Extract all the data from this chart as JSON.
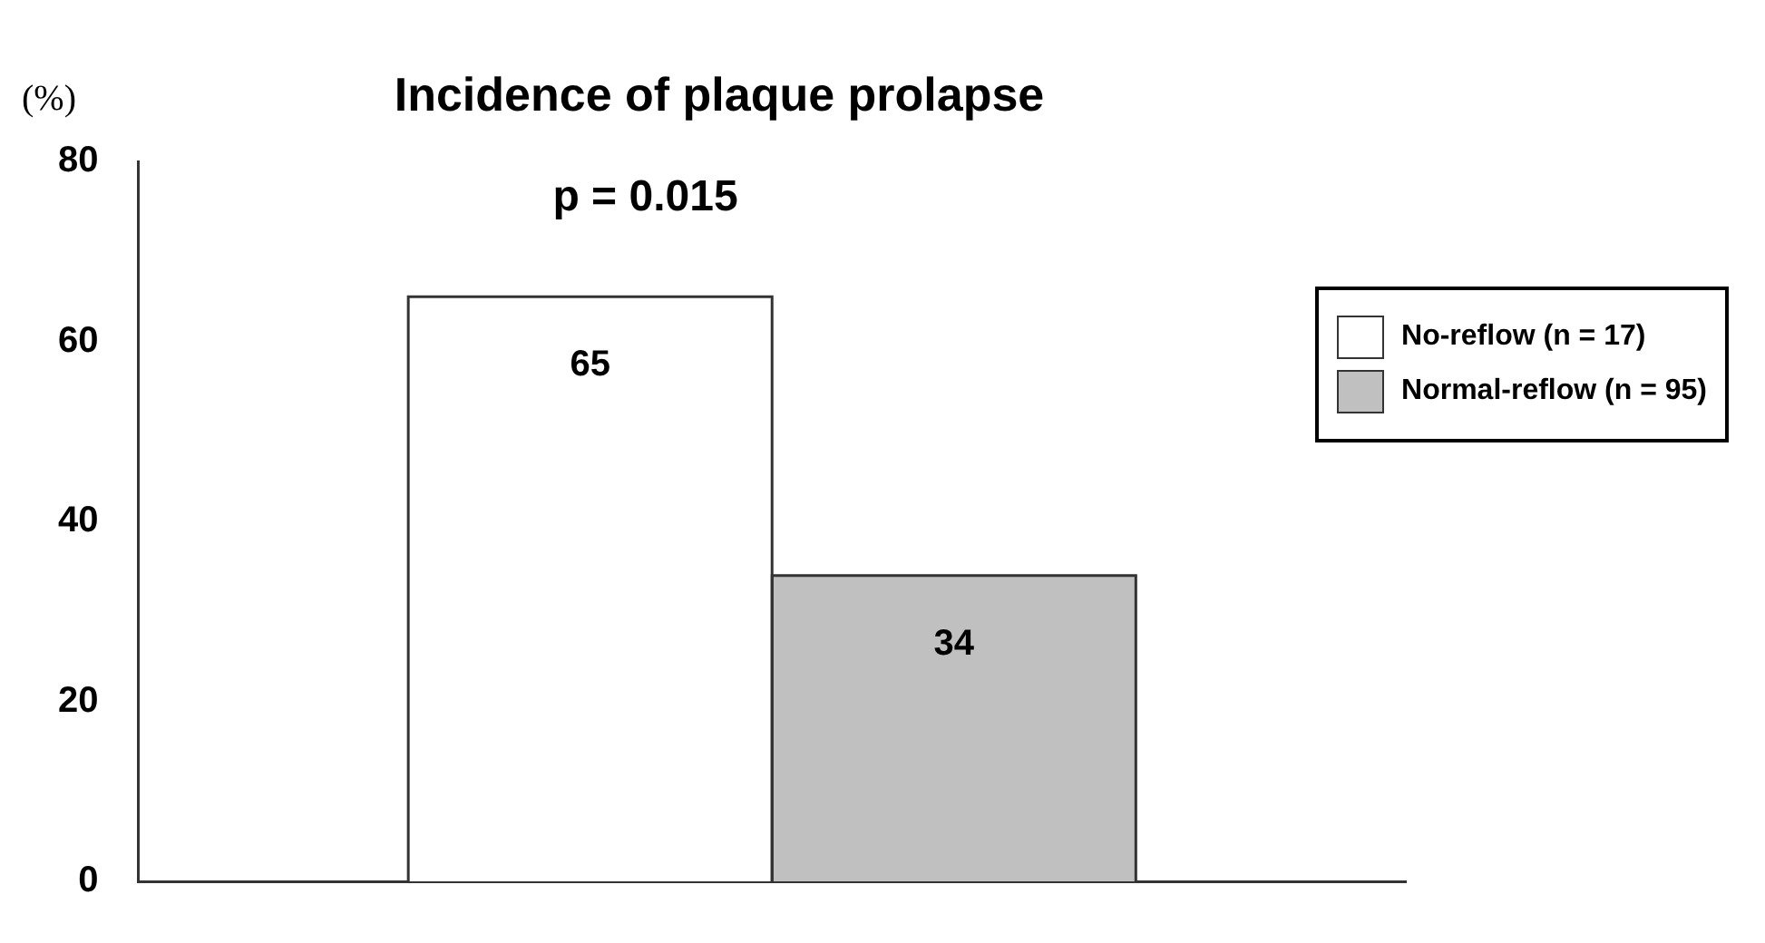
{
  "chart_data": {
    "type": "bar",
    "title": "Incidence of plaque prolapse",
    "ylabel": "(%)",
    "categories": [
      null
    ],
    "series": [
      {
        "name": "No-reflow (n = 17)",
        "color": "#ffffff",
        "values": [
          65
        ]
      },
      {
        "name": "Normal-reflow (n = 95)",
        "color": "#c0c0c0",
        "values": [
          34
        ]
      }
    ],
    "ylim": [
      0,
      80
    ],
    "yticks": [
      0,
      20,
      40,
      60,
      80
    ],
    "grid": false,
    "legend": "top right",
    "data_labels": true,
    "annotations": [
      "p = 0.015"
    ]
  }
}
